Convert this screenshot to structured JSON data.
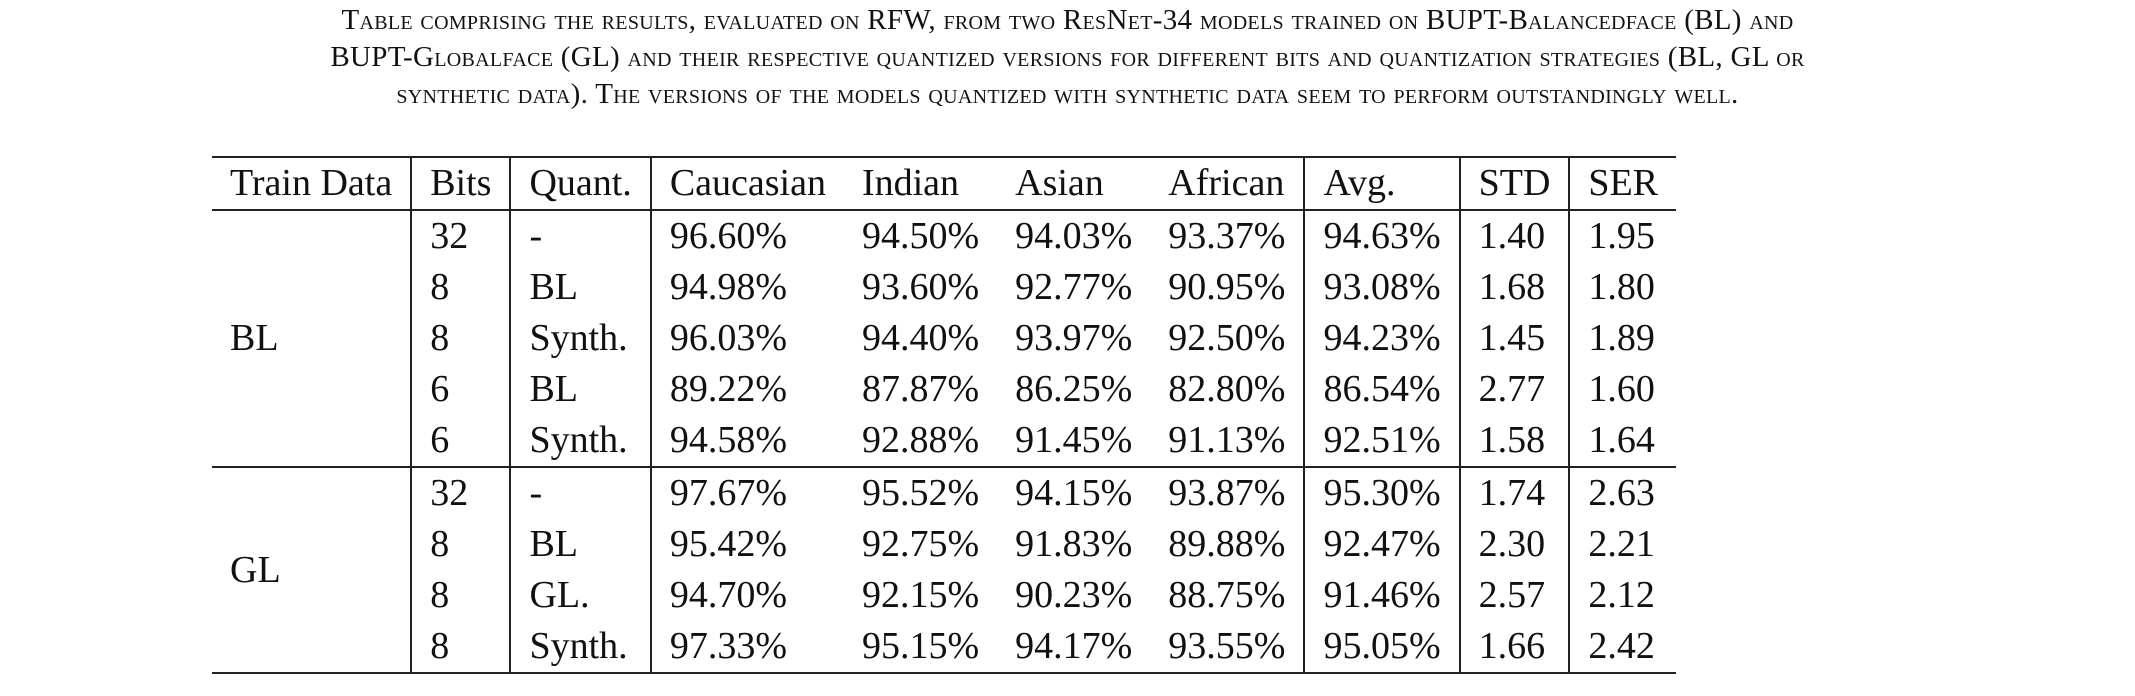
{
  "caption": {
    "line1": "Table comprising the results, evaluated on RFW, from two ResNet-34 models trained on BUPT-Balancedface (BL) and",
    "line2": "BUPT-Globalface (GL) and their respective quantized versions for different bits and quantization strategies (BL, GL or",
    "line3": "synthetic data). The versions of the models quantized with synthetic data seem to perform outstandingly well."
  },
  "table": {
    "headers": [
      "Train Data",
      "Bits",
      "Quant.",
      "Caucasian",
      "Indian",
      "Asian",
      "African",
      "Avg.",
      "STD",
      "SER"
    ],
    "groups": [
      {
        "train_data": "BL",
        "rows": [
          [
            "32",
            "-",
            "96.60%",
            "94.50%",
            "94.03%",
            "93.37%",
            "94.63%",
            "1.40",
            "1.95"
          ],
          [
            "8",
            "BL",
            "94.98%",
            "93.60%",
            "92.77%",
            "90.95%",
            "93.08%",
            "1.68",
            "1.80"
          ],
          [
            "8",
            "Synth.",
            "96.03%",
            "94.40%",
            "93.97%",
            "92.50%",
            "94.23%",
            "1.45",
            "1.89"
          ],
          [
            "6",
            "BL",
            "89.22%",
            "87.87%",
            "86.25%",
            "82.80%",
            "86.54%",
            "2.77",
            "1.60"
          ],
          [
            "6",
            "Synth.",
            "94.58%",
            "92.88%",
            "91.45%",
            "91.13%",
            "92.51%",
            "1.58",
            "1.64"
          ]
        ]
      },
      {
        "train_data": "GL",
        "rows": [
          [
            "32",
            "-",
            "97.67%",
            "95.52%",
            "94.15%",
            "93.87%",
            "95.30%",
            "1.74",
            "2.63"
          ],
          [
            "8",
            "BL",
            "95.42%",
            "92.75%",
            "91.83%",
            "89.88%",
            "92.47%",
            "2.30",
            "2.21"
          ],
          [
            "8",
            "GL.",
            "94.70%",
            "92.15%",
            "90.23%",
            "88.75%",
            "91.46%",
            "2.57",
            "2.12"
          ],
          [
            "8",
            "Synth.",
            "97.33%",
            "95.15%",
            "94.17%",
            "93.55%",
            "95.05%",
            "1.66",
            "2.42"
          ]
        ]
      }
    ]
  }
}
